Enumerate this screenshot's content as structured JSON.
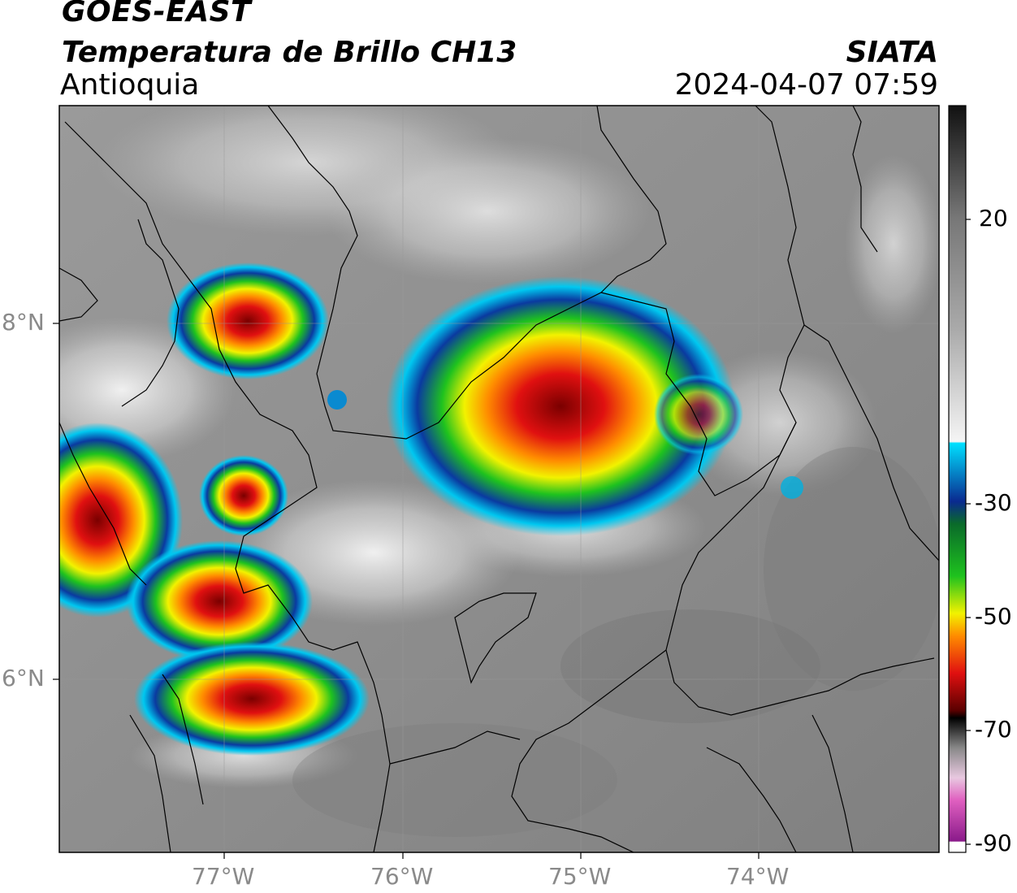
{
  "header": {
    "satellite": "GOES-EAST",
    "product": "Temperatura de Brillo CH13",
    "region": "Antioquia",
    "organization": "SIATA",
    "datetime": "2024-04-07 07:59"
  },
  "map": {
    "lon_labels": [
      "77°W",
      "76°W",
      "75°W",
      "74°W"
    ],
    "lat_labels": [
      "8°N",
      "6°N"
    ]
  },
  "colorbar": {
    "labels": [
      "20",
      "-30",
      "-50",
      "-70",
      "-90"
    ],
    "colors": {
      "warm_top": "#111111",
      "warm_mid": "#8c8c8c",
      "cold_white": "#f2f2f2",
      "cyan": "#00c8f0",
      "blue": "#0a3aa0",
      "green": "#1ec21e",
      "yellow": "#f2f200",
      "orange": "#ff8c00",
      "red": "#e01010",
      "dark_red": "#6a0000",
      "black": "#000000",
      "pink": "#e060c0",
      "purple": "#8a1a8a"
    }
  }
}
